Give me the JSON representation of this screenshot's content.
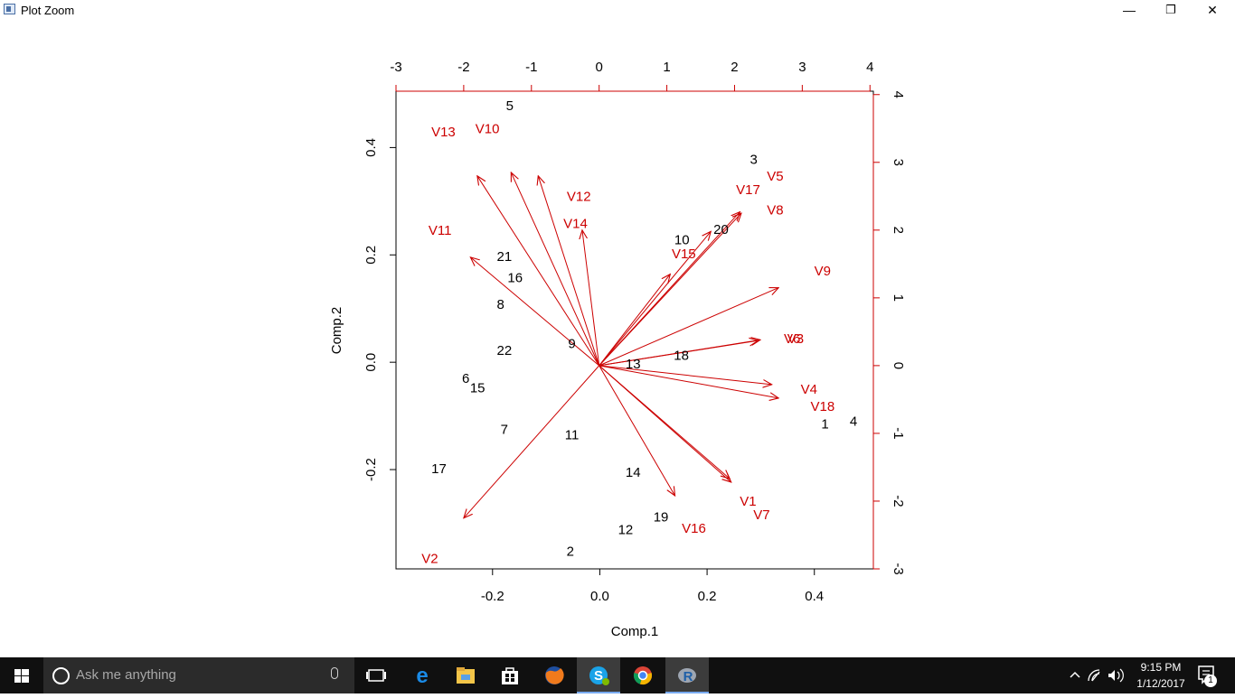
{
  "window": {
    "title": "Plot Zoom",
    "buttons": {
      "minimize": "—",
      "restore": "❐",
      "close": "✕"
    }
  },
  "chart_data": {
    "type": "scatter",
    "subtype": "biplot",
    "xlabel": "Comp.1",
    "ylabel": "Comp.2",
    "xlim": [
      -0.38,
      0.51
    ],
    "ylim": [
      -0.385,
      0.505
    ],
    "bottom_ticks": [
      -0.2,
      0.0,
      0.2,
      0.4
    ],
    "left_ticks": [
      -0.2,
      0.0,
      0.2,
      0.4
    ],
    "top_ticks": [
      -3,
      -2,
      -1,
      0,
      1,
      2,
      3,
      4
    ],
    "right_ticks": [
      -3,
      -2,
      -1,
      0,
      1,
      2,
      3,
      4
    ],
    "secondary_xlim": [
      -3.0,
      4.05
    ],
    "secondary_ylim": [
      -3.0,
      4.05
    ],
    "point_color": "#000000",
    "loading_color": "#cc0000",
    "points": [
      {
        "label": "1",
        "x": 0.42,
        "y": -0.115
      },
      {
        "label": "2",
        "x": -0.055,
        "y": -0.352
      },
      {
        "label": "3",
        "x": 0.287,
        "y": 0.378
      },
      {
        "label": "4",
        "x": 0.473,
        "y": -0.11
      },
      {
        "label": "5",
        "x": -0.168,
        "y": 0.478
      },
      {
        "label": "6",
        "x": -0.25,
        "y": -0.03
      },
      {
        "label": "7",
        "x": -0.178,
        "y": -0.125
      },
      {
        "label": "8",
        "x": -0.185,
        "y": 0.108
      },
      {
        "label": "9",
        "x": -0.052,
        "y": 0.035
      },
      {
        "label": "10",
        "x": 0.153,
        "y": 0.228
      },
      {
        "label": "11",
        "x": -0.052,
        "y": -0.135
      },
      {
        "label": "12",
        "x": 0.048,
        "y": -0.312
      },
      {
        "label": "13",
        "x": 0.062,
        "y": -0.003
      },
      {
        "label": "14",
        "x": 0.062,
        "y": -0.205
      },
      {
        "label": "15",
        "x": -0.228,
        "y": -0.048
      },
      {
        "label": "16",
        "x": -0.158,
        "y": 0.158
      },
      {
        "label": "17",
        "x": -0.3,
        "y": -0.198
      },
      {
        "label": "18",
        "x": 0.152,
        "y": 0.013
      },
      {
        "label": "19",
        "x": 0.114,
        "y": -0.288
      },
      {
        "label": "20",
        "x": 0.226,
        "y": 0.248
      },
      {
        "label": "21",
        "x": -0.178,
        "y": 0.197
      },
      {
        "label": "22",
        "x": -0.178,
        "y": 0.022
      }
    ],
    "loadings": [
      {
        "label": "V1",
        "x": 1.93,
        "y": -1.67,
        "lx": 2.2,
        "ly": -2.0
      },
      {
        "label": "V2",
        "x": -2.0,
        "y": -2.25,
        "lx": -2.5,
        "ly": -2.85
      },
      {
        "label": "V3",
        "x": 2.38,
        "y": 0.38,
        "lx": 2.9,
        "ly": 0.4
      },
      {
        "label": "V4",
        "x": 2.55,
        "y": -0.28,
        "lx": 3.1,
        "ly": -0.35
      },
      {
        "label": "V5",
        "x": 2.08,
        "y": 2.27,
        "lx": 2.6,
        "ly": 2.8
      },
      {
        "label": "V6",
        "x": 2.35,
        "y": 0.37,
        "lx": 2.85,
        "ly": 0.4
      },
      {
        "label": "V7",
        "x": 1.95,
        "y": -1.72,
        "lx": 2.4,
        "ly": -2.2
      },
      {
        "label": "V8",
        "x": 2.1,
        "y": 2.25,
        "lx": 2.6,
        "ly": 2.3
      },
      {
        "label": "V9",
        "x": 2.65,
        "y": 1.15,
        "lx": 3.3,
        "ly": 1.4
      },
      {
        "label": "V10",
        "x": -0.9,
        "y": 2.8,
        "lx": -1.65,
        "ly": 3.5
      },
      {
        "label": "V11",
        "x": -1.9,
        "y": 1.6,
        "lx": -2.35,
        "ly": 2.0
      },
      {
        "label": "V12",
        "x": -1.3,
        "y": 2.85,
        "lx": -0.3,
        "ly": 2.5
      },
      {
        "label": "V13",
        "x": -1.8,
        "y": 2.8,
        "lx": -2.3,
        "ly": 3.45
      },
      {
        "label": "V14",
        "x": -0.25,
        "y": 2.0,
        "lx": -0.35,
        "ly": 2.1
      },
      {
        "label": "V15",
        "x": 1.05,
        "y": 1.35,
        "lx": 1.25,
        "ly": 1.65
      },
      {
        "label": "V16",
        "x": 1.12,
        "y": -1.92,
        "lx": 1.4,
        "ly": -2.4
      },
      {
        "label": "V17",
        "x": 1.65,
        "y": 1.98,
        "lx": 2.2,
        "ly": 2.6
      },
      {
        "label": "V18",
        "x": 2.65,
        "y": -0.48,
        "lx": 3.3,
        "ly": -0.6
      }
    ]
  },
  "taskbar": {
    "search_placeholder": "Ask me anything",
    "apps": [
      {
        "name": "task-view-icon"
      },
      {
        "name": "edge-icon"
      },
      {
        "name": "file-explorer-icon"
      },
      {
        "name": "store-icon"
      },
      {
        "name": "firefox-icon"
      },
      {
        "name": "skype-icon"
      },
      {
        "name": "chrome-icon"
      },
      {
        "name": "r-icon",
        "active": true
      }
    ],
    "time": "9:15 PM",
    "date": "1/12/2017",
    "notification_count": "1"
  }
}
